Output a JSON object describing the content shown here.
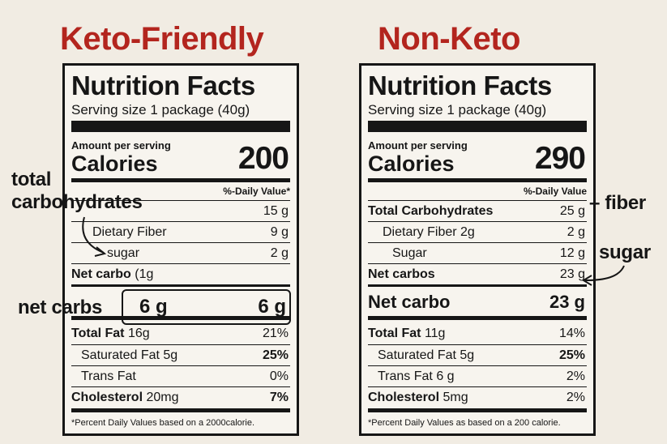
{
  "left": {
    "heading": "Keto-Friendly",
    "heading_color": "#b3251e",
    "title": "Nutrition Facts",
    "serving": "Serving size 1 package (40g)",
    "amount_per_serving": "Amount per serving",
    "calories_label": "Calories",
    "calories_value": "200",
    "dv_header": "%-Daily Value*",
    "rows": {
      "carbs": {
        "amount": "15 g"
      },
      "fiber": {
        "label": "Dietary Fiber",
        "amount": "9 g"
      },
      "sugar": {
        "label": "sugar",
        "amount": "2 g"
      },
      "net_carbo": {
        "label": "Net carbo",
        "extra": "(1g"
      },
      "total_fat": {
        "label": "Total Fat",
        "amount": "16g",
        "dv": "21%"
      },
      "sat_fat": {
        "label": "Saturated Fat",
        "amount": "5g",
        "dv": "25%"
      },
      "trans_fat": {
        "label": "Trans Fat",
        "dv": "0%"
      },
      "cholesterol": {
        "label": "Cholesterol",
        "amount": "20mg",
        "dv": "7%"
      }
    },
    "net_carbs_box": {
      "value_a": "6 g",
      "value_b": "6 g"
    },
    "footnote": "*Percent Daily Values based on a 2000calorie."
  },
  "right": {
    "heading": "Non-Keto",
    "heading_color": "#b3251e",
    "title": "Nutrition Facts",
    "serving": "Serving size 1 package (40g)",
    "amount_per_serving": "Amount per serving",
    "calories_label": "Calories",
    "calories_value": "290",
    "dv_header": "%-Daily Value",
    "rows": {
      "carbs": {
        "label": "Total Carbohydrates",
        "amount": "25 g"
      },
      "fiber": {
        "label": "Dietary Fiber 2g",
        "amount": "2 g"
      },
      "sugar": {
        "label": "Sugar",
        "amount": "12 g"
      },
      "net_carbos": {
        "label": "Net carbos",
        "amount": "23 g"
      },
      "net_carbo_big": {
        "label": "Net carbo",
        "amount": "23 g"
      },
      "total_fat": {
        "label": "Total Fat",
        "amount": "11g",
        "dv": "14%"
      },
      "sat_fat": {
        "label": "Saturated Fat",
        "amount": "5g",
        "dv": "25%"
      },
      "trans_fat": {
        "label": "Trans Fat",
        "amount": "6 g",
        "dv": "2%"
      },
      "cholesterol": {
        "label": "Cholesterol",
        "amount": "5mg",
        "dv": "2%"
      }
    },
    "footnote": "*Percent Daily Values as based on a 200 calorie."
  },
  "annotations": {
    "total": "total",
    "carbohydrates": "carbohydrates",
    "net_carbs": "net carbs",
    "fiber": "– fiber",
    "sugar": "sugar"
  }
}
